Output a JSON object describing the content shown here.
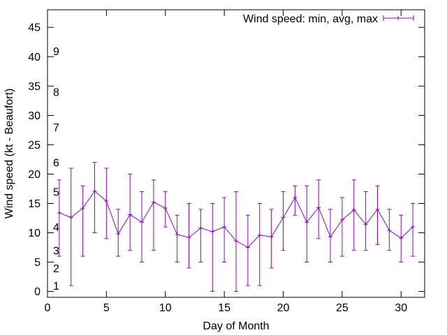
{
  "chart_data": {
    "type": "line",
    "title": "",
    "xlabel": "Day of Month",
    "ylabel": "Wind speed (kt - Beaufort)",
    "xlim": [
      0,
      32
    ],
    "ylim": [
      -1,
      48
    ],
    "x_ticks": [
      0,
      5,
      10,
      15,
      20,
      25,
      30
    ],
    "y_ticks": [
      0,
      5,
      10,
      15,
      20,
      25,
      30,
      35,
      40,
      45
    ],
    "grid": false,
    "legend_position": "top-right",
    "series": [
      {
        "name": "Wind speed: min, avg, max",
        "color": "#9400d3",
        "style": "yerrorlines",
        "x": [
          1,
          2,
          3,
          4,
          5,
          6,
          7,
          8,
          9,
          10,
          11,
          12,
          13,
          14,
          15,
          16,
          17,
          18,
          19,
          20,
          21,
          22,
          23,
          24,
          25,
          26,
          27,
          28,
          29,
          30,
          31
        ],
        "avg": [
          13.4,
          12.6,
          14.2,
          17.1,
          15.4,
          9.8,
          13.1,
          11.8,
          15.2,
          14.2,
          9.7,
          9.2,
          10.8,
          10.2,
          11.0,
          8.6,
          7.5,
          9.6,
          9.3,
          12.6,
          16.0,
          11.8,
          14.3,
          9.3,
          12.2,
          13.9,
          11.4,
          14.0,
          10.4,
          9.1,
          11.0
        ],
        "min": [
          6,
          1,
          6,
          10,
          9,
          6,
          7,
          5,
          7,
          11,
          5,
          4,
          5,
          0,
          5,
          0,
          1,
          1,
          4,
          7,
          13,
          5,
          9,
          5,
          6,
          7,
          7,
          8,
          7,
          5,
          6
        ],
        "max": [
          19,
          21,
          18,
          22,
          21,
          14,
          20,
          17,
          19,
          17,
          13,
          15,
          14,
          15,
          16,
          17,
          13,
          15,
          14,
          17,
          18,
          18,
          19,
          14,
          16,
          19,
          17,
          18,
          14,
          13,
          15
        ]
      }
    ],
    "beaufort_labels": [
      {
        "label": "1",
        "value": 1
      },
      {
        "label": "2",
        "value": 4
      },
      {
        "label": "3",
        "value": 7
      },
      {
        "label": "4",
        "value": 11
      },
      {
        "label": "5",
        "value": 17
      },
      {
        "label": "6",
        "value": 22
      },
      {
        "label": "7",
        "value": 28
      },
      {
        "label": "8",
        "value": 34
      },
      {
        "label": "9",
        "value": 41
      }
    ]
  }
}
